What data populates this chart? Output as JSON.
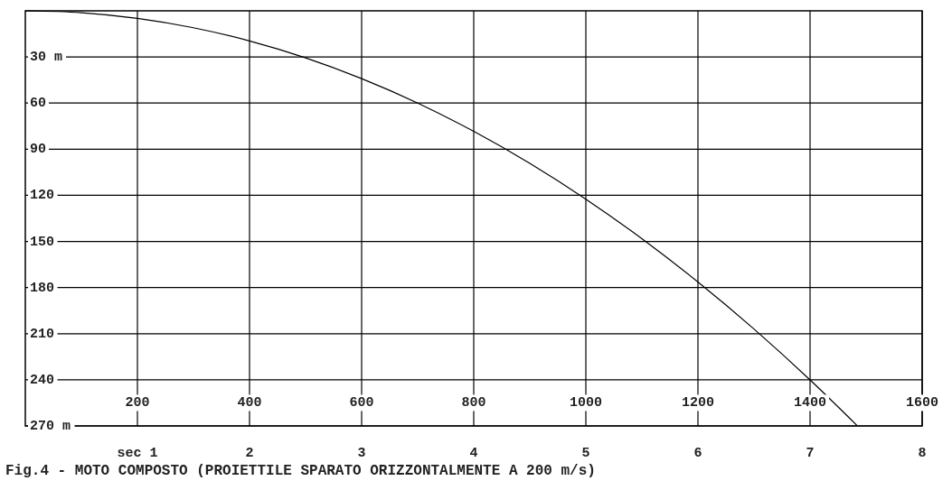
{
  "chart_data": {
    "type": "line",
    "title": "Fig.4 - MOTO COMPOSTO (PROIETTILE SPARATO ORIZZONTALMENTE A 200 m/s)",
    "x": [
      0,
      0.5,
      1,
      1.5,
      2,
      2.5,
      3,
      3.5,
      4,
      4.5,
      5,
      5.5,
      6,
      6.5,
      7,
      7.42
    ],
    "series": [
      {
        "color": "#000000",
        "values": [
          0,
          1.2,
          4.9,
          11,
          19.6,
          30.6,
          44.1,
          60,
          78.4,
          99.2,
          122.5,
          148.2,
          176.4,
          207,
          240.1,
          269.8
        ]
      }
    ],
    "xlim": [
      0,
      8
    ],
    "xticks": [
      {
        "value": 1,
        "label": "sec 1"
      },
      2,
      3,
      4,
      5,
      6,
      7,
      8
    ],
    "x2lim": [
      0,
      1600
    ],
    "x2ticks": [
      200,
      400,
      600,
      800,
      1000,
      1200,
      1400,
      1600
    ],
    "ylim": [
      270,
      0
    ],
    "yticks": [
      {
        "value": 30,
        "label": "30 m"
      },
      60,
      90,
      120,
      150,
      180,
      210,
      240,
      {
        "value": 270,
        "label": "270 m"
      }
    ],
    "grid": true,
    "marker": "none",
    "line_style": "solid"
  }
}
